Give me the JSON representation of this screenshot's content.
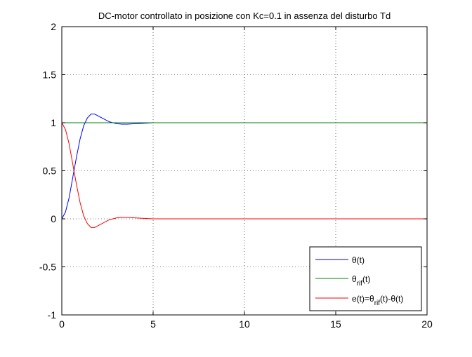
{
  "chart_data": {
    "type": "line",
    "title": "DC-motor controllato in posizione con Kc=0.1 in assenza del disturbo Td",
    "xlabel": "",
    "ylabel": "",
    "xlim": [
      0,
      20
    ],
    "ylim": [
      -1,
      2
    ],
    "grid": true,
    "legend_position": "bottom-right",
    "x_ticks": [
      0,
      5,
      10,
      15,
      20
    ],
    "y_ticks": [
      -1,
      -0.5,
      0,
      0.5,
      1,
      1.5,
      2
    ],
    "x_tick_labels": [
      "0",
      "5",
      "10",
      "15",
      "20"
    ],
    "y_tick_labels": [
      "-1",
      "-0.5",
      "0",
      "0.5",
      "1",
      "1.5",
      "2"
    ],
    "series": [
      {
        "name": "θ(t)",
        "legend_parts": [
          {
            "text": "θ(t)",
            "sub": false
          }
        ],
        "color": "#0000ff",
        "x": [
          0,
          0.2,
          0.4,
          0.6,
          0.8,
          1.0,
          1.2,
          1.4,
          1.6,
          1.8,
          2.0,
          2.2,
          2.4,
          2.6,
          2.8,
          3.0,
          3.3,
          3.6,
          4.0,
          4.5,
          5,
          6,
          7,
          8,
          10,
          12,
          14,
          16,
          18,
          20
        ],
        "y": [
          0,
          0.07,
          0.22,
          0.43,
          0.64,
          0.83,
          0.97,
          1.05,
          1.09,
          1.09,
          1.07,
          1.05,
          1.03,
          1.01,
          1.0,
          0.99,
          0.985,
          0.985,
          0.99,
          0.995,
          1.0,
          1.0,
          1.0,
          1.0,
          1.0,
          1.0,
          1.0,
          1.0,
          1.0,
          1.0
        ]
      },
      {
        "name": "θrif(t)",
        "legend_parts": [
          {
            "text": "θ",
            "sub": false
          },
          {
            "text": "rif",
            "sub": true
          },
          {
            "text": "(t)",
            "sub": false
          }
        ],
        "color": "#008000",
        "x": [
          0,
          20
        ],
        "y": [
          1,
          1
        ]
      },
      {
        "name": "e(t)=θrif(t)-θ(t)",
        "legend_parts": [
          {
            "text": "e(t)=θ",
            "sub": false
          },
          {
            "text": "rif",
            "sub": true
          },
          {
            "text": "(t)-θ(t)",
            "sub": false
          }
        ],
        "color": "#ff0000",
        "x": [
          0,
          0.2,
          0.4,
          0.6,
          0.8,
          1.0,
          1.2,
          1.4,
          1.6,
          1.8,
          2.0,
          2.2,
          2.4,
          2.6,
          2.8,
          3.0,
          3.3,
          3.6,
          4.0,
          4.5,
          5,
          6,
          7,
          8,
          10,
          12,
          14,
          16,
          18,
          20
        ],
        "y": [
          1,
          0.93,
          0.78,
          0.57,
          0.36,
          0.17,
          0.03,
          -0.05,
          -0.09,
          -0.09,
          -0.07,
          -0.05,
          -0.03,
          -0.01,
          0.0,
          0.01,
          0.015,
          0.015,
          0.01,
          0.005,
          0.0,
          0.0,
          0.0,
          0.0,
          0.0,
          0.0,
          0.0,
          0.0,
          0.0,
          0.0
        ]
      }
    ]
  }
}
